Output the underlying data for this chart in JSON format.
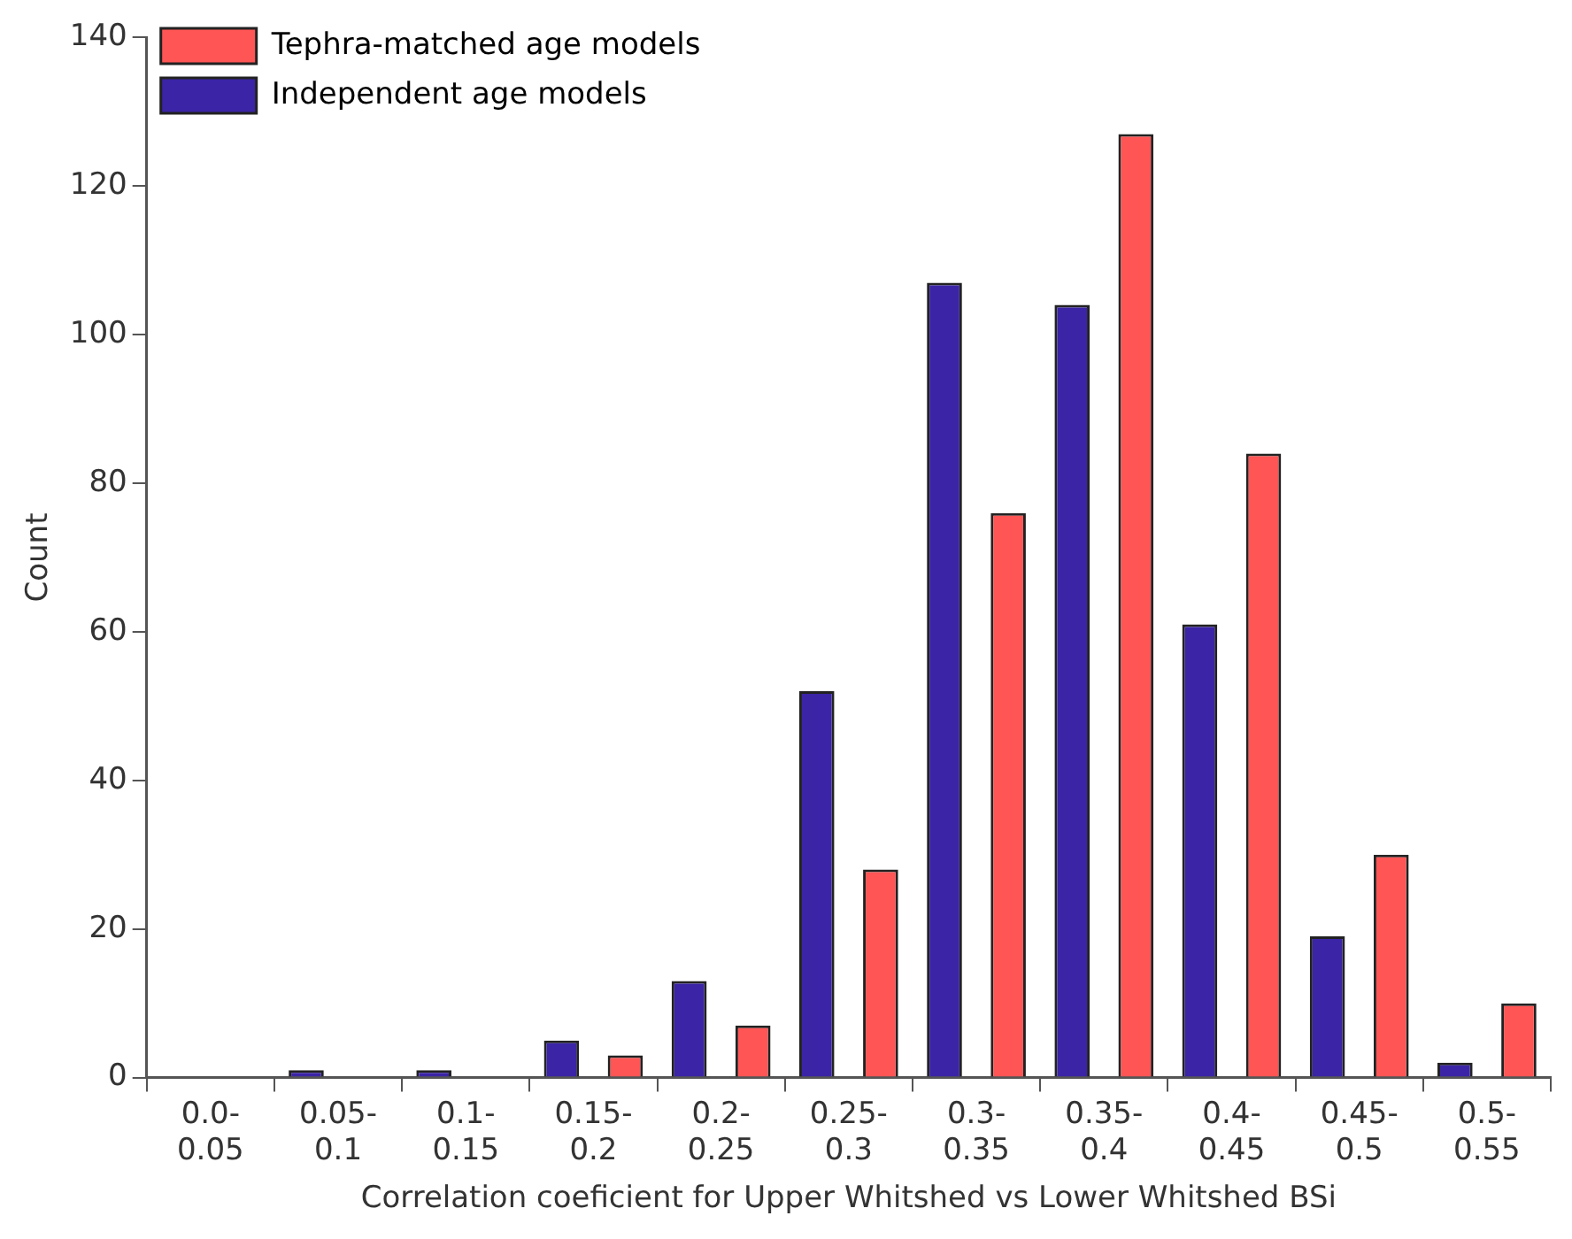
{
  "chart_data": {
    "type": "bar",
    "xlabel": "Correlation coeficient for Upper Whitshed vs Lower Whitshed BSi",
    "ylabel": "Count",
    "categories": [
      "0.0- 0.05",
      "0.05- 0.1",
      "0.1- 0.15",
      "0.15- 0.2",
      "0.2- 0.25",
      "0.25- 0.3",
      "0.3- 0.35",
      "0.35- 0.4",
      "0.4- 0.45",
      "0.45- 0.5",
      "0.5- 0.55"
    ],
    "series": [
      {
        "name": "Independent age models",
        "color": "#3b24a6",
        "values": [
          0,
          1,
          1,
          5,
          13,
          52,
          107,
          104,
          61,
          19,
          2
        ]
      },
      {
        "name": "Tephra-matched age models",
        "color": "#ff5555",
        "values": [
          0,
          0,
          0,
          3,
          7,
          28,
          76,
          127,
          84,
          30,
          10
        ]
      }
    ],
    "ylim": [
      0,
      140
    ],
    "yticks": [
      0,
      20,
      40,
      60,
      80,
      100,
      120,
      140
    ],
    "grid": false,
    "legend": "top left"
  }
}
